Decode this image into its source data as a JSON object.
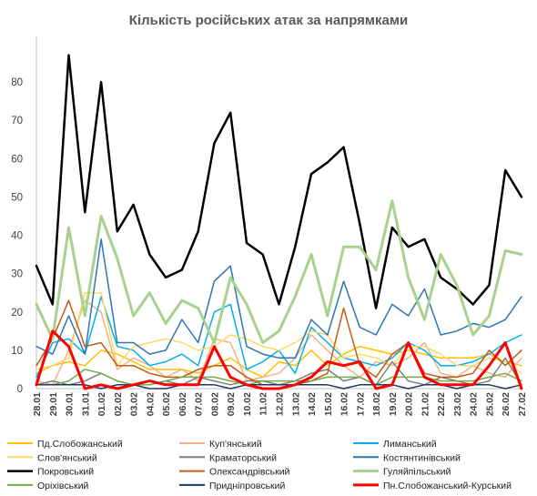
{
  "chart_data": {
    "type": "line",
    "title": "Кількість російських атак за напрямками",
    "xlabel": "",
    "ylabel": "",
    "ylim": [
      0,
      90
    ],
    "yticks": [
      0,
      10,
      20,
      30,
      40,
      50,
      60,
      70,
      80
    ],
    "grid": false,
    "legend_position": "bottom",
    "x": [
      "28.01",
      "29.01",
      "30.01",
      "31.01",
      "01.02",
      "02.02",
      "03.02",
      "04.02",
      "05.02",
      "06.02",
      "07.02",
      "08.02",
      "09.02",
      "10.02",
      "11.02",
      "12.02",
      "13.02",
      "14.02",
      "15.02",
      "16.02",
      "17.02",
      "18.02",
      "19.02",
      "20.02",
      "21.02",
      "22.02",
      "23.02",
      "24.02",
      "25.02",
      "26.02",
      "27.02"
    ],
    "series": [
      {
        "name": "Пд.Слобожанський",
        "color": "#ffc000",
        "width": 1.5,
        "values": [
          4,
          6,
          7,
          6,
          10,
          9,
          7,
          5,
          5,
          5,
          4,
          6,
          8,
          5,
          3,
          7,
          6,
          10,
          6,
          9,
          11,
          10,
          9,
          10,
          9,
          8,
          8,
          8,
          9,
          7,
          6
        ]
      },
      {
        "name": "Куп'янський",
        "color": "#f4b183",
        "width": 1.5,
        "values": [
          2,
          1,
          10,
          23,
          20,
          5,
          8,
          6,
          3,
          5,
          2,
          13,
          12,
          2,
          3,
          4,
          8,
          14,
          10,
          6,
          3,
          7,
          6,
          8,
          12,
          4,
          3,
          6,
          4,
          3,
          8
        ]
      },
      {
        "name": "Лиманський",
        "color": "#00b0f0",
        "width": 1.5,
        "values": [
          3,
          12,
          13,
          9,
          24,
          11,
          10,
          6,
          7,
          9,
          6,
          20,
          22,
          5,
          7,
          10,
          4,
          16,
          12,
          8,
          7,
          6,
          8,
          12,
          10,
          6,
          6,
          7,
          9,
          12,
          14
        ]
      },
      {
        "name": "Слов'янський",
        "color": "#ffd966",
        "width": 1.5,
        "values": [
          5,
          6,
          8,
          25,
          25,
          6,
          11,
          12,
          13,
          12,
          10,
          11,
          14,
          13,
          11,
          10,
          12,
          15,
          14,
          8,
          9,
          8,
          6,
          11,
          11,
          9,
          6,
          6,
          8,
          7,
          4
        ]
      },
      {
        "name": "Краматорський",
        "color": "#7f7f7f",
        "width": 1.5,
        "values": [
          1,
          2,
          1,
          2,
          4,
          2,
          1,
          1,
          2,
          1,
          3,
          2,
          1,
          2,
          2,
          1,
          2,
          4,
          5,
          2,
          3,
          1,
          7,
          2,
          1,
          3,
          2,
          1,
          2,
          8,
          1
        ]
      },
      {
        "name": "Костянтинівський",
        "color": "#2e75b6",
        "width": 1.5,
        "values": [
          11,
          9,
          19,
          9,
          39,
          12,
          12,
          9,
          10,
          18,
          12,
          28,
          32,
          11,
          9,
          8,
          8,
          18,
          14,
          28,
          16,
          14,
          22,
          19,
          26,
          14,
          15,
          17,
          16,
          18,
          24
        ]
      },
      {
        "name": "Покровський",
        "color": "#000000",
        "width": 2.5,
        "values": [
          32,
          22,
          87,
          46,
          80,
          41,
          48,
          35,
          29,
          31,
          41,
          64,
          72,
          38,
          35,
          22,
          37,
          56,
          59,
          63,
          43,
          21,
          42,
          37,
          39,
          29,
          26,
          22,
          27,
          57,
          50
        ]
      },
      {
        "name": "Олександрівський",
        "color": "#c55a11",
        "width": 1.5,
        "values": [
          6,
          13,
          23,
          11,
          12,
          6,
          6,
          4,
          3,
          3,
          5,
          6,
          6,
          3,
          1,
          1,
          1,
          2,
          4,
          21,
          6,
          3,
          9,
          12,
          4,
          3,
          3,
          4,
          10,
          6,
          10
        ]
      },
      {
        "name": "Гуляйпільський",
        "color": "#a9d18e",
        "width": 3.0,
        "values": [
          22,
          13,
          42,
          19,
          45,
          34,
          19,
          25,
          17,
          23,
          21,
          12,
          29,
          22,
          12,
          15,
          24,
          35,
          19,
          37,
          37,
          31,
          49,
          29,
          18,
          35,
          27,
          14,
          19,
          36,
          35
        ]
      },
      {
        "name": "Оріхівський",
        "color": "#70ad47",
        "width": 1.5,
        "values": [
          1,
          1,
          2,
          5,
          4,
          2,
          1,
          1,
          2,
          3,
          3,
          3,
          2,
          1,
          2,
          2,
          2,
          2,
          3,
          3,
          3,
          1,
          3,
          3,
          3,
          2,
          2,
          2,
          3,
          4,
          2
        ]
      },
      {
        "name": "Придніпровський",
        "color": "#1f3864",
        "width": 1.5,
        "values": [
          1,
          1,
          1,
          1,
          0,
          1,
          1,
          0,
          0,
          1,
          1,
          1,
          0,
          1,
          1,
          1,
          1,
          1,
          1,
          0,
          1,
          1,
          1,
          0,
          1,
          1,
          0,
          1,
          1,
          0,
          1
        ]
      },
      {
        "name": "Пн.Слобожанський-Курський",
        "color": "#ff0000",
        "width": 3.0,
        "values": [
          1,
          15,
          11,
          0,
          1,
          0,
          1,
          2,
          1,
          1,
          1,
          11,
          3,
          1,
          0,
          0,
          1,
          3,
          7,
          6,
          7,
          0,
          1,
          12,
          3,
          1,
          1,
          1,
          6,
          12,
          0
        ]
      }
    ]
  }
}
